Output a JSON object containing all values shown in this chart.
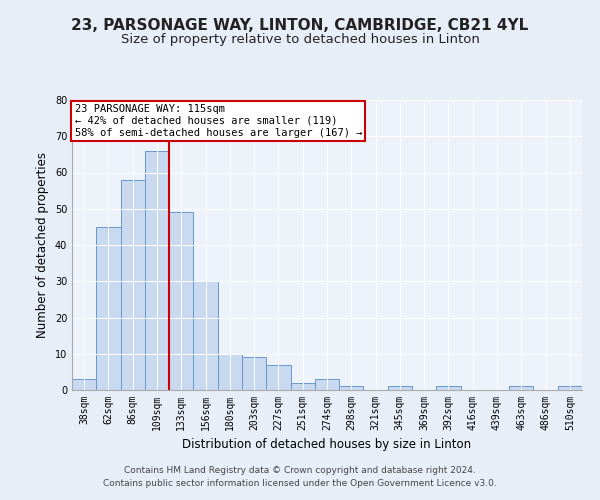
{
  "title": "23, PARSONAGE WAY, LINTON, CAMBRIDGE, CB21 4YL",
  "subtitle": "Size of property relative to detached houses in Linton",
  "xlabel": "Distribution of detached houses by size in Linton",
  "ylabel": "Number of detached properties",
  "bar_labels": [
    "38sqm",
    "62sqm",
    "86sqm",
    "109sqm",
    "133sqm",
    "156sqm",
    "180sqm",
    "203sqm",
    "227sqm",
    "251sqm",
    "274sqm",
    "298sqm",
    "321sqm",
    "345sqm",
    "369sqm",
    "392sqm",
    "416sqm",
    "439sqm",
    "463sqm",
    "486sqm",
    "510sqm"
  ],
  "bar_heights": [
    3,
    45,
    58,
    66,
    49,
    30,
    10,
    9,
    7,
    2,
    3,
    1,
    0,
    1,
    0,
    1,
    0,
    0,
    1,
    0,
    1
  ],
  "bar_color": "#c9d9f0",
  "bar_edge_color": "#6699cc",
  "vline_color": "#cc0000",
  "vline_position": 3.5,
  "annotation_text": "23 PARSONAGE WAY: 115sqm\n← 42% of detached houses are smaller (119)\n58% of semi-detached houses are larger (167) →",
  "annotation_box_color": "#ffffff",
  "annotation_box_edge": "#cc0000",
  "ylim": [
    0,
    80
  ],
  "yticks": [
    0,
    10,
    20,
    30,
    40,
    50,
    60,
    70,
    80
  ],
  "footer_line1": "Contains HM Land Registry data © Crown copyright and database right 2024.",
  "footer_line2": "Contains public sector information licensed under the Open Government Licence v3.0.",
  "bg_color": "#e8eef8",
  "plot_bg_color": "#eef2fa",
  "title_fontsize": 11,
  "subtitle_fontsize": 9.5,
  "axis_label_fontsize": 8.5,
  "tick_fontsize": 7,
  "footer_fontsize": 6.5,
  "annotation_fontsize": 7.5
}
